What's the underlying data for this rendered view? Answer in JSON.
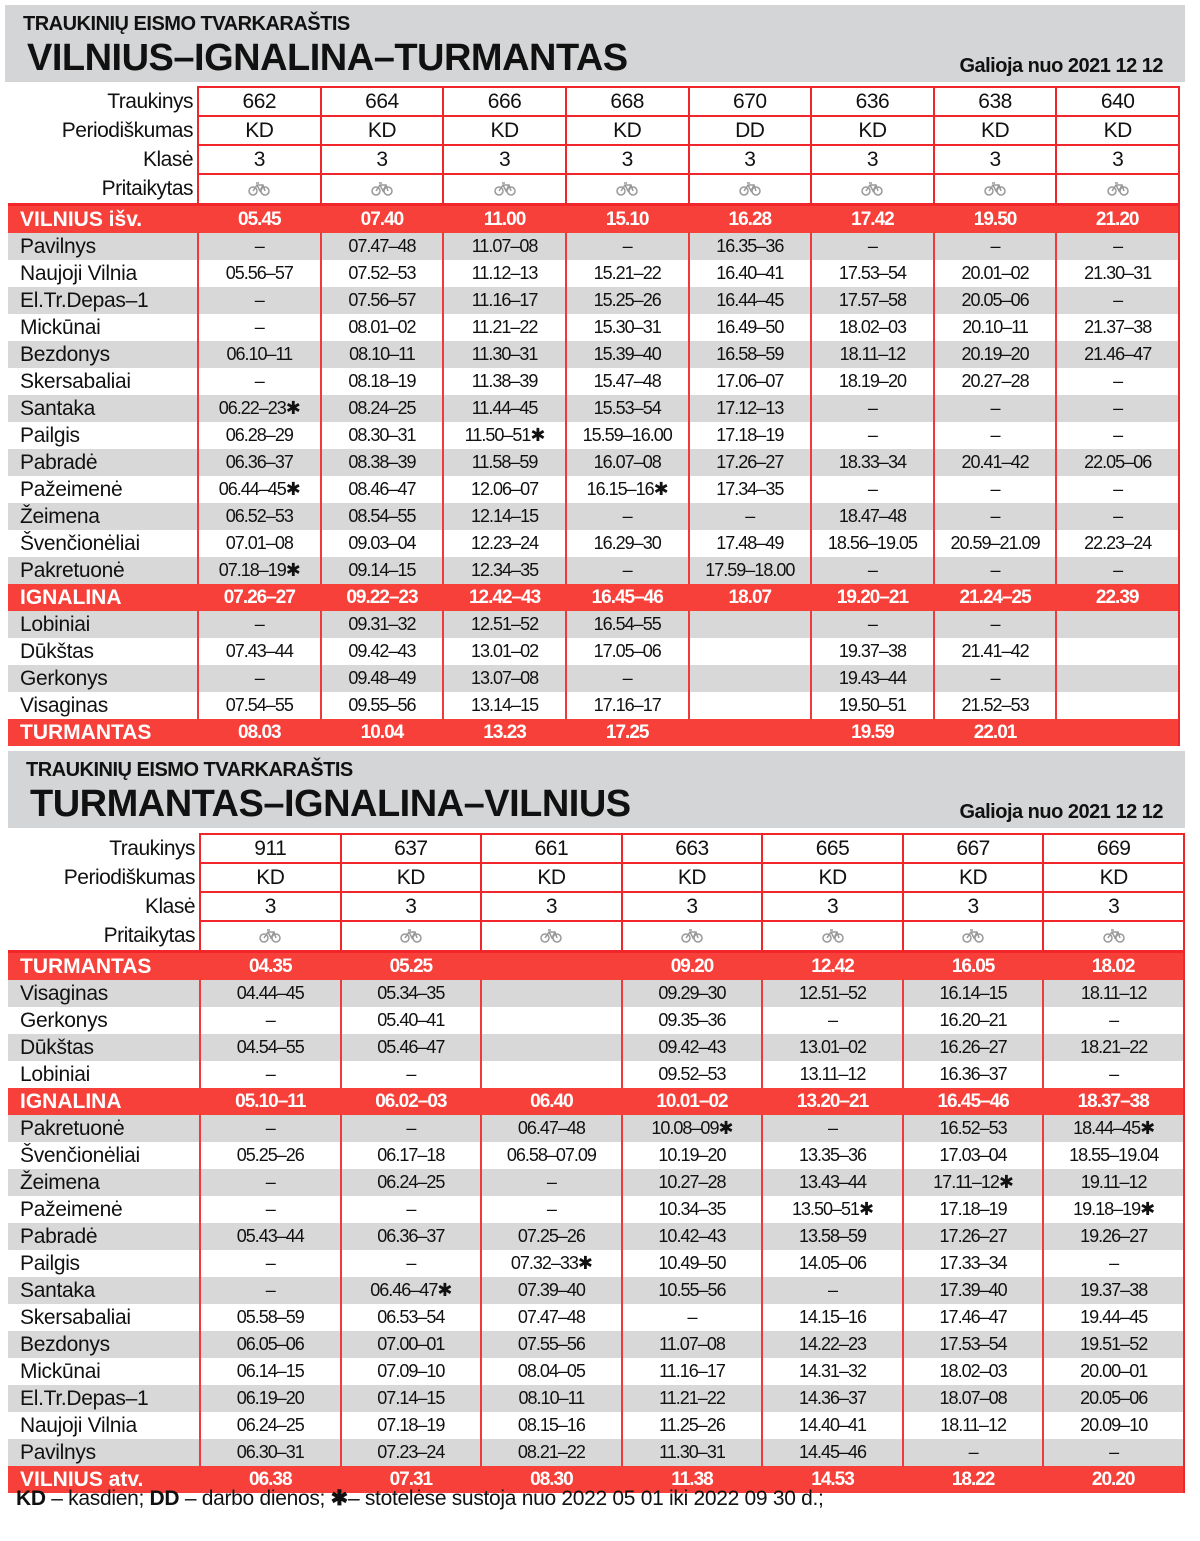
{
  "footnote": {
    "kd": "KD",
    "kd_text": " – kasdien; ",
    "dd": "DD",
    "dd_text": " – darbo dienos; ",
    "star_icon": "asterisk-icon",
    "star_text": "– stotelėse sustoja nuo 2022 05 01 iki 2022 09 30 d.;"
  },
  "colors": {
    "accent_red": "#f8403a",
    "row_gray": "#d8d8d8",
    "header_gray": "#d4d5d6"
  },
  "tables": [
    {
      "supertitle": "TRAUKINIŲ EISMO TVARKARAŠTIS",
      "title": "VILNIUS–IGNALINA–TURMANTAS",
      "valid_from": "Galioja nuo 2021 12 12",
      "labels": {
        "train": "Traukinys",
        "periodicity": "Periodiškumas",
        "class": "Klasė",
        "adapted": "Pritaikytas"
      },
      "trains": [
        "662",
        "664",
        "666",
        "668",
        "670",
        "636",
        "638",
        "640"
      ],
      "periodicity": [
        "KD",
        "KD",
        "KD",
        "KD",
        "DD",
        "KD",
        "KD",
        "KD"
      ],
      "classes": [
        "3",
        "3",
        "3",
        "3",
        "3",
        "3",
        "3",
        "3"
      ],
      "adapted_icon": "bicycle-icon",
      "rows": [
        {
          "station": "VILNIUS išv.",
          "major": true,
          "times": [
            "05.45",
            "07.40",
            "11.00",
            "15.10",
            "16.28",
            "17.42",
            "19.50",
            "21.20"
          ]
        },
        {
          "station": "Pavilnys",
          "times": [
            "–",
            "07.47–48",
            "11.07–08",
            "–",
            "16.35–36",
            "–",
            "–",
            "–"
          ]
        },
        {
          "station": "Naujoji Vilnia",
          "times": [
            "05.56–57",
            "07.52–53",
            "11.12–13",
            "15.21–22",
            "16.40–41",
            "17.53–54",
            "20.01–02",
            "21.30–31"
          ]
        },
        {
          "station": "El.Tr.Depas–1",
          "times": [
            "–",
            "07.56–57",
            "11.16–17",
            "15.25–26",
            "16.44–45",
            "17.57–58",
            "20.05–06",
            "–"
          ]
        },
        {
          "station": "Mickūnai",
          "times": [
            "–",
            "08.01–02",
            "11.21–22",
            "15.30–31",
            "16.49–50",
            "18.02–03",
            "20.10–11",
            "21.37–38"
          ]
        },
        {
          "station": "Bezdonys",
          "times": [
            "06.10–11",
            "08.10–11",
            "11.30–31",
            "15.39–40",
            "16.58–59",
            "18.11–12",
            "20.19–20",
            "21.46–47"
          ]
        },
        {
          "station": "Skersabaliai",
          "times": [
            "–",
            "08.18–19",
            "11.38–39",
            "15.47–48",
            "17.06–07",
            "18.19–20",
            "20.27–28",
            "–"
          ]
        },
        {
          "station": "Santaka",
          "times": [
            "06.22–23✱",
            "08.24–25",
            "11.44–45",
            "15.53–54",
            "17.12–13",
            "–",
            "–",
            "–"
          ]
        },
        {
          "station": "Pailgis",
          "times": [
            "06.28–29",
            "08.30–31",
            "11.50–51✱",
            "15.59–16.00",
            "17.18–19",
            "–",
            "–",
            "–"
          ]
        },
        {
          "station": "Pabradė",
          "times": [
            "06.36–37",
            "08.38–39",
            "11.58–59",
            "16.07–08",
            "17.26–27",
            "18.33–34",
            "20.41–42",
            "22.05–06"
          ]
        },
        {
          "station": "Pažeimenė",
          "times": [
            "06.44–45✱",
            "08.46–47",
            "12.06–07",
            "16.15–16✱",
            "17.34–35",
            "–",
            "–",
            "–"
          ]
        },
        {
          "station": "Žeimena",
          "times": [
            "06.52–53",
            "08.54–55",
            "12.14–15",
            "–",
            "–",
            "18.47–48",
            "–",
            "–"
          ]
        },
        {
          "station": "Švenčionėliai",
          "times": [
            "07.01–08",
            "09.03–04",
            "12.23–24",
            "16.29–30",
            "17.48–49",
            "18.56–19.05",
            "20.59–21.09",
            "22.23–24"
          ]
        },
        {
          "station": "Pakretuonė",
          "times": [
            "07.18–19✱",
            "09.14–15",
            "12.34–35",
            "–",
            "17.59–18.00",
            "–",
            "–",
            "–"
          ]
        },
        {
          "station": "IGNALINA",
          "major": true,
          "times": [
            "07.26–27",
            "09.22–23",
            "12.42–43",
            "16.45–46",
            "18.07",
            "19.20–21",
            "21.24–25",
            "22.39"
          ]
        },
        {
          "station": "Lobiniai",
          "times": [
            "–",
            "09.31–32",
            "12.51–52",
            "16.54–55",
            "",
            "–",
            "–",
            ""
          ]
        },
        {
          "station": "Dūkštas",
          "times": [
            "07.43–44",
            "09.42–43",
            "13.01–02",
            "17.05–06",
            "",
            "19.37–38",
            "21.41–42",
            ""
          ]
        },
        {
          "station": "Gerkonys",
          "times": [
            "–",
            "09.48–49",
            "13.07–08",
            "–",
            "",
            "19.43–44",
            "–",
            ""
          ]
        },
        {
          "station": "Visaginas",
          "times": [
            "07.54–55",
            "09.55–56",
            "13.14–15",
            "17.16–17",
            "",
            "19.50–51",
            "21.52–53",
            ""
          ]
        },
        {
          "station": "TURMANTAS",
          "major": true,
          "times": [
            "08.03",
            "10.04",
            "13.23",
            "17.25",
            "",
            "19.59",
            "22.01",
            ""
          ]
        }
      ]
    },
    {
      "supertitle": "TRAUKINIŲ EISMO TVARKARAŠTIS",
      "title": "TURMANTAS–IGNALINA–VILNIUS",
      "valid_from": "Galioja nuo 2021 12 12",
      "labels": {
        "train": "Traukinys",
        "periodicity": "Periodiškumas",
        "class": "Klasė",
        "adapted": "Pritaikytas"
      },
      "trains": [
        "911",
        "637",
        "661",
        "663",
        "665",
        "667",
        "669"
      ],
      "periodicity": [
        "KD",
        "KD",
        "KD",
        "KD",
        "KD",
        "KD",
        "KD"
      ],
      "classes": [
        "3",
        "3",
        "3",
        "3",
        "3",
        "3",
        "3"
      ],
      "adapted_icon": "bicycle-icon",
      "rows": [
        {
          "station": "TURMANTAS",
          "major": true,
          "times": [
            "04.35",
            "05.25",
            "",
            "09.20",
            "12.42",
            "16.05",
            "18.02"
          ]
        },
        {
          "station": "Visaginas",
          "times": [
            "04.44–45",
            "05.34–35",
            "",
            "09.29–30",
            "12.51–52",
            "16.14–15",
            "18.11–12"
          ]
        },
        {
          "station": "Gerkonys",
          "times": [
            "–",
            "05.40–41",
            "",
            "09.35–36",
            "–",
            "16.20–21",
            "–"
          ]
        },
        {
          "station": "Dūkštas",
          "times": [
            "04.54–55",
            "05.46–47",
            "",
            "09.42–43",
            "13.01–02",
            "16.26–27",
            "18.21–22"
          ]
        },
        {
          "station": "Lobiniai",
          "times": [
            "–",
            "–",
            "",
            "09.52–53",
            "13.11–12",
            "16.36–37",
            "–"
          ]
        },
        {
          "station": "IGNALINA",
          "major": true,
          "times": [
            "05.10–11",
            "06.02–03",
            "06.40",
            "10.01–02",
            "13.20–21",
            "16.45–46",
            "18.37–38"
          ]
        },
        {
          "station": "Pakretuonė",
          "times": [
            "–",
            "–",
            "06.47–48",
            "10.08–09✱",
            "–",
            "16.52–53",
            "18.44–45✱"
          ]
        },
        {
          "station": "Švenčionėliai",
          "times": [
            "05.25–26",
            "06.17–18",
            "06.58–07.09",
            "10.19–20",
            "13.35–36",
            "17.03–04",
            "18.55–19.04"
          ]
        },
        {
          "station": "Žeimena",
          "times": [
            "–",
            "06.24–25",
            "–",
            "10.27–28",
            "13.43–44",
            "17.11–12✱",
            "19.11–12"
          ]
        },
        {
          "station": "Pažeimenė",
          "times": [
            "–",
            "–",
            "–",
            "10.34–35",
            "13.50–51✱",
            "17.18–19",
            "19.18–19✱"
          ]
        },
        {
          "station": "Pabradė",
          "times": [
            "05.43–44",
            "06.36–37",
            "07.25–26",
            "10.42–43",
            "13.58–59",
            "17.26–27",
            "19.26–27"
          ]
        },
        {
          "station": "Pailgis",
          "times": [
            "–",
            "–",
            "07.32–33✱",
            "10.49–50",
            "14.05–06",
            "17.33–34",
            "–"
          ]
        },
        {
          "station": "Santaka",
          "times": [
            "–",
            "06.46–47✱",
            "07.39–40",
            "10.55–56",
            "–",
            "17.39–40",
            "19.37–38"
          ]
        },
        {
          "station": "Skersabaliai",
          "times": [
            "05.58–59",
            "06.53–54",
            "07.47–48",
            "–",
            "14.15–16",
            "17.46–47",
            "19.44–45"
          ]
        },
        {
          "station": "Bezdonys",
          "times": [
            "06.05–06",
            "07.00–01",
            "07.55–56",
            "11.07–08",
            "14.22–23",
            "17.53–54",
            "19.51–52"
          ]
        },
        {
          "station": "Mickūnai",
          "times": [
            "06.14–15",
            "07.09–10",
            "08.04–05",
            "11.16–17",
            "14.31–32",
            "18.02–03",
            "20.00–01"
          ]
        },
        {
          "station": "El.Tr.Depas–1",
          "times": [
            "06.19–20",
            "07.14–15",
            "08.10–11",
            "11.21–22",
            "14.36–37",
            "18.07–08",
            "20.05–06"
          ]
        },
        {
          "station": "Naujoji Vilnia",
          "times": [
            "06.24–25",
            "07.18–19",
            "08.15–16",
            "11.25–26",
            "14.40–41",
            "18.11–12",
            "20.09–10"
          ]
        },
        {
          "station": "Pavilnys",
          "times": [
            "06.30–31",
            "07.23–24",
            "08.21–22",
            "11.30–31",
            "14.45–46",
            "–",
            "–"
          ]
        },
        {
          "station": "VILNIUS atv.",
          "major": true,
          "times": [
            "06.38",
            "07.31",
            "08.30",
            "11.38",
            "14.53",
            "18.22",
            "20.20"
          ]
        }
      ]
    }
  ]
}
